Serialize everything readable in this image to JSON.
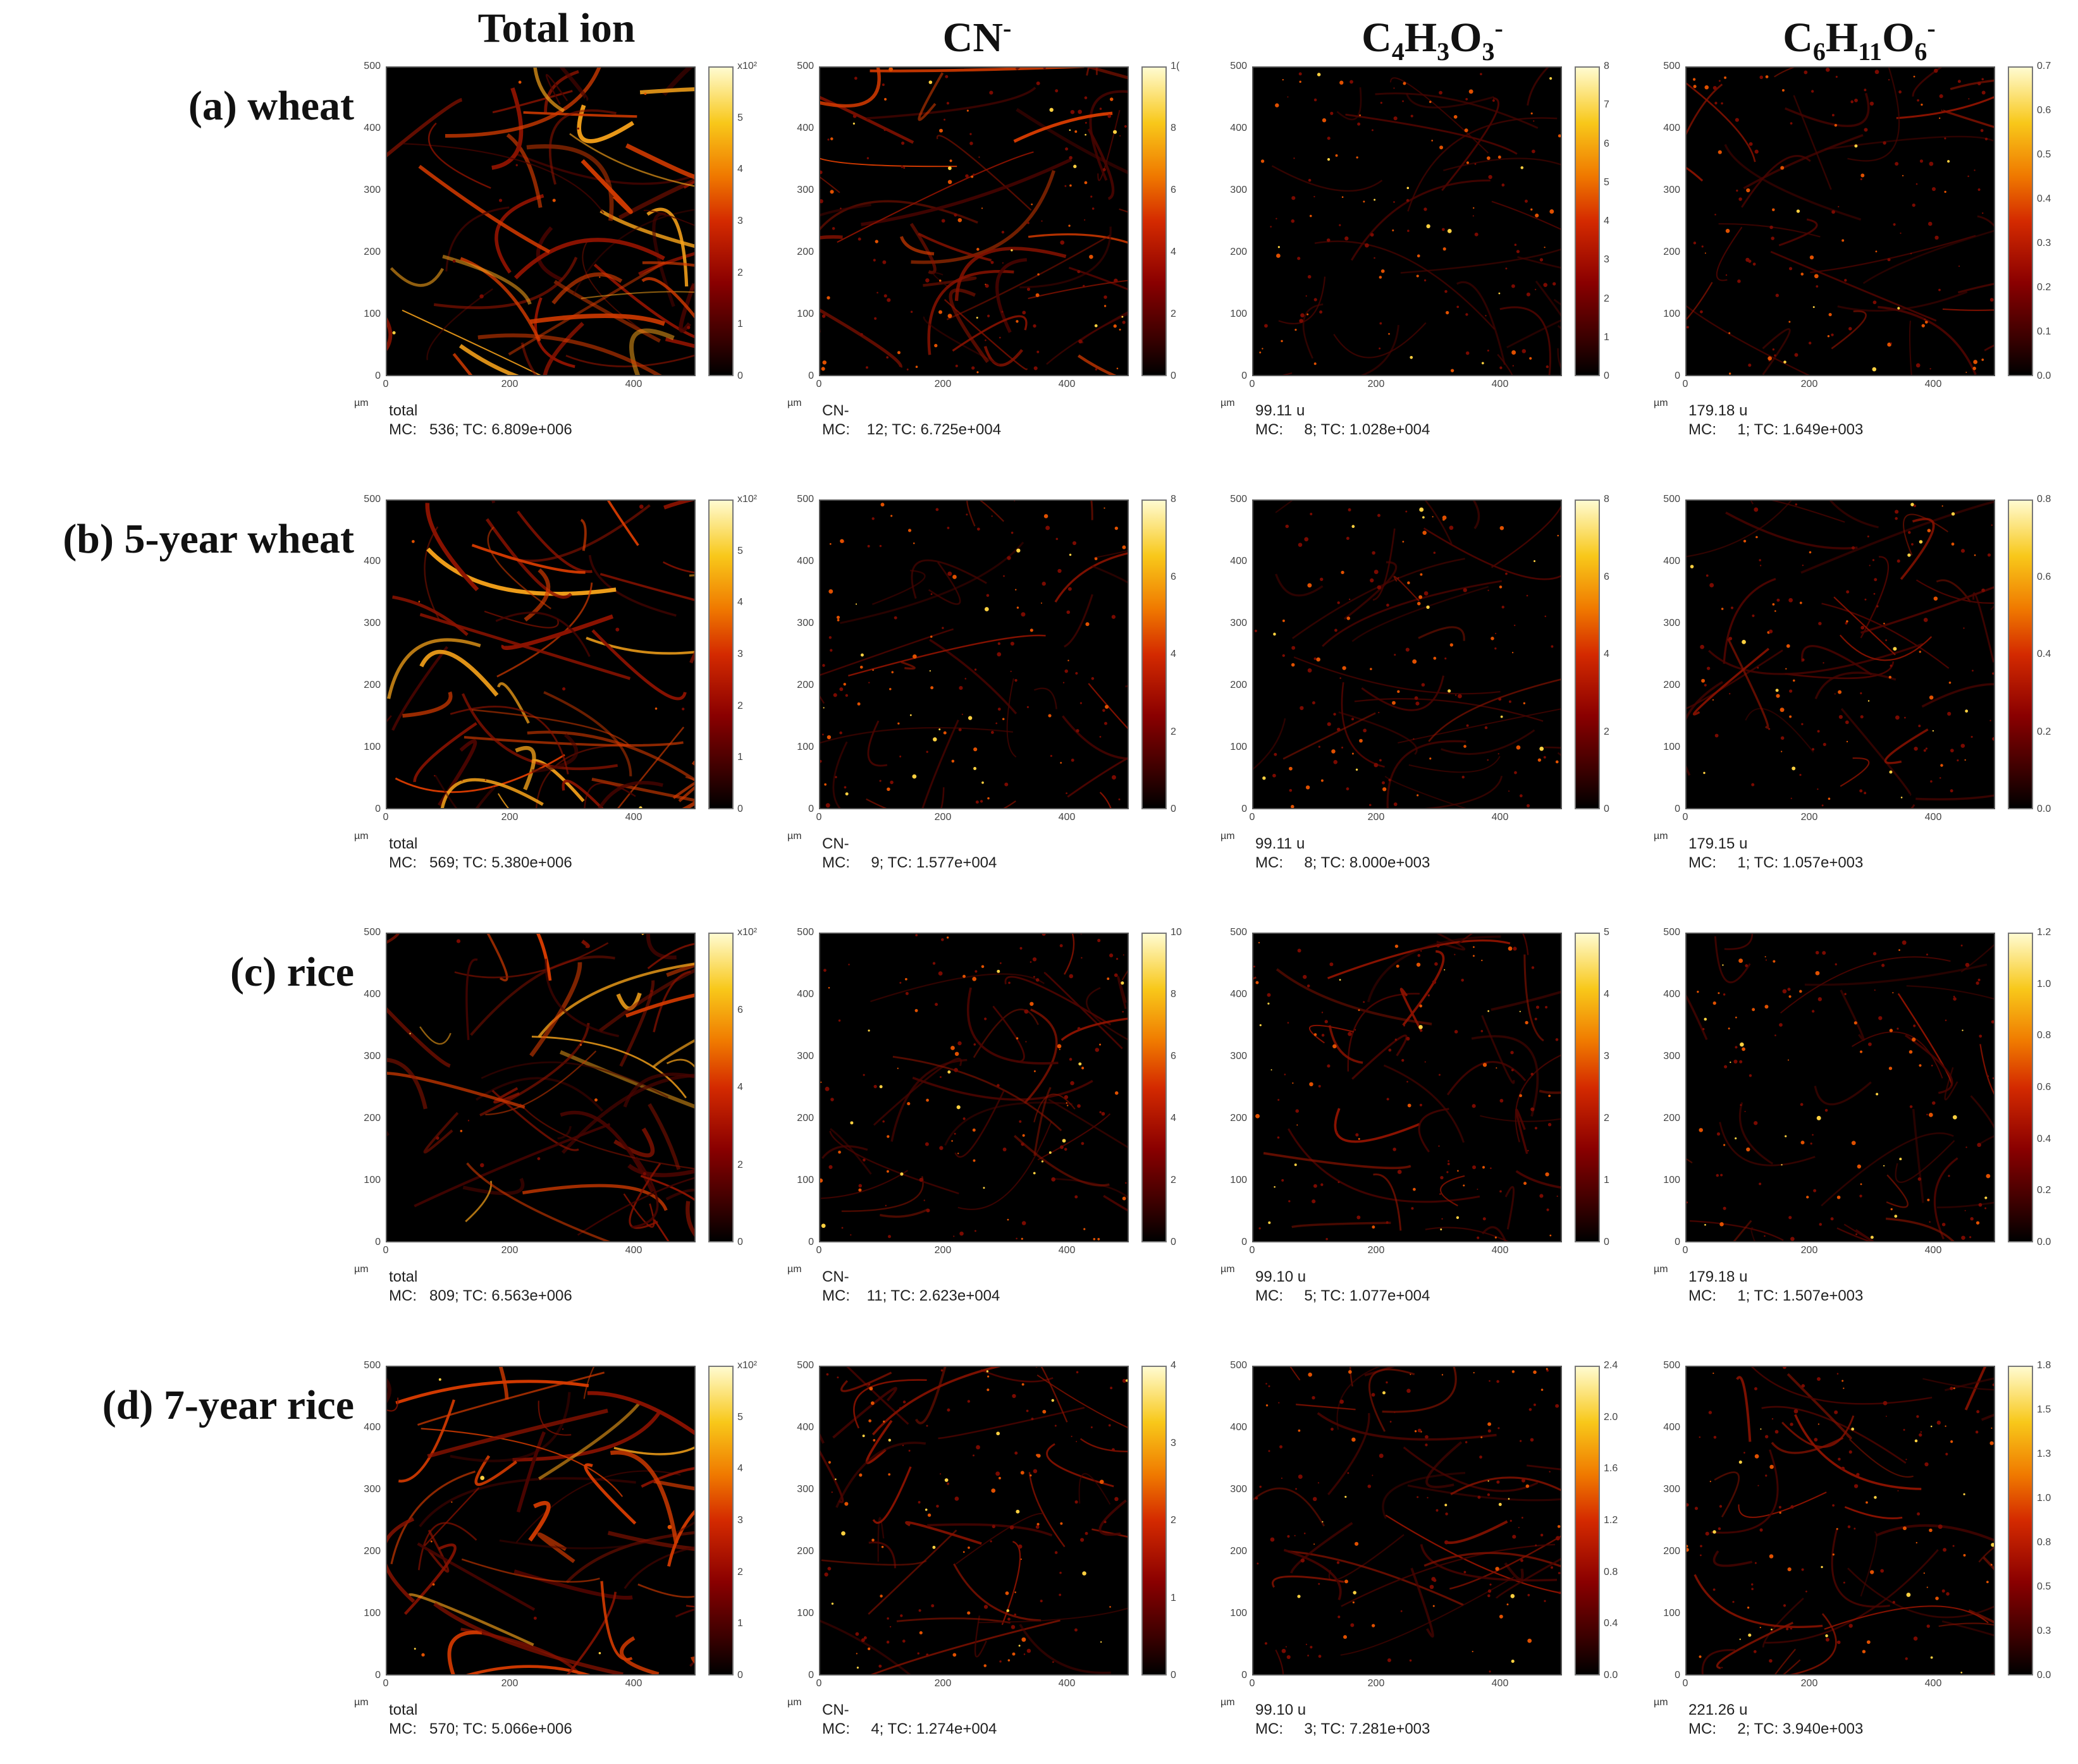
{
  "columns": [
    {
      "base": "Total ion",
      "sub1": "",
      "mid": "",
      "sub2": "",
      "sup": ""
    },
    {
      "base": "CN",
      "sub1": "",
      "mid": "",
      "sub2": "",
      "sup": "-"
    },
    {
      "base": "C",
      "sub1": "4",
      "mid": "H",
      "sub2": "3",
      "tail": "O",
      "sub3": "3",
      "sup": "-"
    },
    {
      "base": "C",
      "sub1": "6",
      "mid": "H",
      "sub2": "11",
      "tail": "O",
      "sub3": "6",
      "sup": "-"
    }
  ],
  "rows": [
    {
      "label": "(a) wheat"
    },
    {
      "label": "(b) 5-year wheat"
    },
    {
      "label": "(c) rice"
    },
    {
      "label": "(d) 7-year rice"
    }
  ],
  "axis": {
    "y_ticks": [
      "500",
      "400",
      "300",
      "200",
      "100",
      "0"
    ],
    "x_ticks": [
      "0",
      "200",
      "400"
    ],
    "unit": "µm"
  },
  "panels": [
    [
      {
        "name": "total",
        "mc_tc": "MC:   536; TC: 6.809e+006",
        "cbar": [
          "x10²",
          "5",
          "4",
          "3",
          "2",
          "1",
          "0"
        ],
        "intensity": 0.9
      },
      {
        "name": "CN-",
        "mc_tc": "MC:    12; TC: 6.725e+004",
        "cbar": [
          "1(",
          "8",
          "6",
          "4",
          "2",
          "0"
        ],
        "intensity": 0.6
      },
      {
        "name": "99.11 u",
        "mc_tc": "MC:     8; TC: 1.028e+004",
        "cbar": [
          "8",
          "7",
          "6",
          "5",
          "4",
          "3",
          "2",
          "1",
          "0"
        ],
        "intensity": 0.2
      },
      {
        "name": "179.18 u",
        "mc_tc": "MC:     1; TC: 1.649e+003",
        "cbar": [
          "0.7",
          "0.6",
          "0.5",
          "0.4",
          "0.3",
          "0.2",
          "0.1",
          "0.0"
        ],
        "intensity": 0.3
      }
    ],
    [
      {
        "name": "total",
        "mc_tc": "MC:   569; TC: 5.380e+006",
        "cbar": [
          "x10²",
          "5",
          "4",
          "3",
          "2",
          "1",
          "0"
        ],
        "intensity": 0.85
      },
      {
        "name": "CN-",
        "mc_tc": "MC:     9; TC: 1.577e+004",
        "cbar": [
          "8",
          "6",
          "4",
          "2",
          "0"
        ],
        "intensity": 0.25
      },
      {
        "name": "99.11 u",
        "mc_tc": "MC:     8; TC: 8.000e+003",
        "cbar": [
          "8",
          "6",
          "4",
          "2",
          "0"
        ],
        "intensity": 0.25
      },
      {
        "name": "179.15 u",
        "mc_tc": "MC:     1; TC: 1.057e+003",
        "cbar": [
          "0.8",
          "0.6",
          "0.4",
          "0.2",
          "0.0"
        ],
        "intensity": 0.3
      }
    ],
    [
      {
        "name": "total",
        "mc_tc": "MC:   809; TC: 6.563e+006",
        "cbar": [
          "x10²",
          "6",
          "4",
          "2",
          "0"
        ],
        "intensity": 0.8
      },
      {
        "name": "CN-",
        "mc_tc": "MC:    11; TC: 2.623e+004",
        "cbar": [
          "10",
          "8",
          "6",
          "4",
          "2",
          "0"
        ],
        "intensity": 0.3
      },
      {
        "name": "99.10 u",
        "mc_tc": "MC:     5; TC: 1.077e+004",
        "cbar": [
          "5",
          "4",
          "3",
          "2",
          "1",
          "0"
        ],
        "intensity": 0.35
      },
      {
        "name": "179.18 u",
        "mc_tc": "MC:     1; TC: 1.507e+003",
        "cbar": [
          "1.2",
          "1.0",
          "0.8",
          "0.6",
          "0.4",
          "0.2",
          "0.0"
        ],
        "intensity": 0.25
      }
    ],
    [
      {
        "name": "total",
        "mc_tc": "MC:   570; TC: 5.066e+006",
        "cbar": [
          "x10²",
          "5",
          "4",
          "3",
          "2",
          "1",
          "0"
        ],
        "intensity": 0.8
      },
      {
        "name": "CN-",
        "mc_tc": "MC:     4; TC: 1.274e+004",
        "cbar": [
          "4",
          "3",
          "2",
          "1",
          "0"
        ],
        "intensity": 0.35
      },
      {
        "name": "99.10 u",
        "mc_tc": "MC:     3; TC: 7.281e+003",
        "cbar": [
          "2.4",
          "2.0",
          "1.6",
          "1.2",
          "0.8",
          "0.4",
          "0.0"
        ],
        "intensity": 0.4
      },
      {
        "name": "221.26 u",
        "mc_tc": "MC:     2; TC: 3.940e+003",
        "cbar": [
          "1.8",
          "1.5",
          "1.3",
          "1.0",
          "0.8",
          "0.5",
          "0.3",
          "0.0"
        ],
        "intensity": 0.35
      }
    ]
  ]
}
